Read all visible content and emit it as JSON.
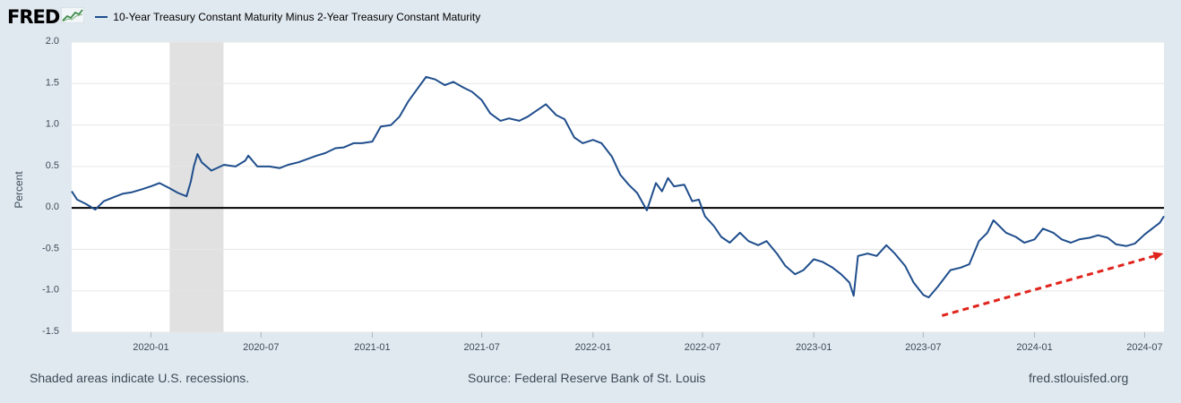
{
  "header": {
    "logo": "FRED",
    "logo_icon": "line-chart-icon",
    "series_title": "10-Year Treasury Constant Maturity Minus 2-Year Treasury Constant Maturity"
  },
  "footer": {
    "left": "Shaded areas indicate U.S. recessions.",
    "center": "Source: Federal Reserve Bank of St. Louis",
    "right": "fred.stlouisfed.org"
  },
  "colors": {
    "series": "#1f4e8c",
    "recession": "#e1e1e1",
    "zero_line": "#000000",
    "arrow": "#e0241c",
    "background": "#e1e9f0",
    "plot": "#ffffff"
  },
  "chart_data": {
    "type": "line",
    "ylabel": "Percent",
    "ylim": [
      -1.5,
      2.0
    ],
    "yticks": [
      -1.5,
      -1.0,
      -0.5,
      0.0,
      0.5,
      1.0,
      1.5,
      2.0
    ],
    "ytick_labels": [
      "-1.5",
      "-1.0",
      "-0.5",
      "0.0",
      "0.5",
      "1.0",
      "1.5",
      "2.0"
    ],
    "xlim": [
      "2019-08-23",
      "2024-08-02"
    ],
    "xticks": [
      "2020-01",
      "2020-07",
      "2021-01",
      "2021-07",
      "2022-01",
      "2022-07",
      "2023-01",
      "2023-07",
      "2024-01",
      "2024-07"
    ],
    "recession": [
      "2020-02-01",
      "2020-04-30"
    ],
    "zero_line": 0.0,
    "series": [
      {
        "points": [
          [
            "2019-08-23",
            0.2
          ],
          [
            "2019-09-01",
            0.1
          ],
          [
            "2019-09-15",
            0.05
          ],
          [
            "2019-10-01",
            -0.02
          ],
          [
            "2019-10-15",
            0.08
          ],
          [
            "2019-11-01",
            0.13
          ],
          [
            "2019-11-15",
            0.17
          ],
          [
            "2019-12-01",
            0.19
          ],
          [
            "2019-12-15",
            0.22
          ],
          [
            "2020-01-01",
            0.26
          ],
          [
            "2020-01-15",
            0.3
          ],
          [
            "2020-01-31",
            0.24
          ],
          [
            "2020-02-15",
            0.18
          ],
          [
            "2020-02-29",
            0.14
          ],
          [
            "2020-03-07",
            0.32
          ],
          [
            "2020-03-12",
            0.5
          ],
          [
            "2020-03-18",
            0.65
          ],
          [
            "2020-03-25",
            0.55
          ],
          [
            "2020-04-10",
            0.45
          ],
          [
            "2020-05-01",
            0.52
          ],
          [
            "2020-05-20",
            0.5
          ],
          [
            "2020-06-05",
            0.57
          ],
          [
            "2020-06-10",
            0.63
          ],
          [
            "2020-06-25",
            0.5
          ],
          [
            "2020-07-15",
            0.5
          ],
          [
            "2020-08-01",
            0.48
          ],
          [
            "2020-08-15",
            0.52
          ],
          [
            "2020-09-01",
            0.55
          ],
          [
            "2020-10-01",
            0.63
          ],
          [
            "2020-10-15",
            0.66
          ],
          [
            "2020-11-01",
            0.72
          ],
          [
            "2020-11-15",
            0.73
          ],
          [
            "2020-12-01",
            0.78
          ],
          [
            "2020-12-15",
            0.78
          ],
          [
            "2021-01-01",
            0.8
          ],
          [
            "2021-01-15",
            0.98
          ],
          [
            "2021-02-01",
            1.0
          ],
          [
            "2021-02-15",
            1.1
          ],
          [
            "2021-03-01",
            1.28
          ],
          [
            "2021-03-15",
            1.42
          ],
          [
            "2021-03-31",
            1.58
          ],
          [
            "2021-04-15",
            1.55
          ],
          [
            "2021-05-01",
            1.48
          ],
          [
            "2021-05-15",
            1.52
          ],
          [
            "2021-06-01",
            1.45
          ],
          [
            "2021-06-15",
            1.4
          ],
          [
            "2021-07-01",
            1.3
          ],
          [
            "2021-07-15",
            1.14
          ],
          [
            "2021-08-01",
            1.05
          ],
          [
            "2021-08-15",
            1.08
          ],
          [
            "2021-09-01",
            1.05
          ],
          [
            "2021-09-15",
            1.1
          ],
          [
            "2021-10-01",
            1.18
          ],
          [
            "2021-10-15",
            1.25
          ],
          [
            "2021-11-01",
            1.12
          ],
          [
            "2021-11-15",
            1.07
          ],
          [
            "2021-12-01",
            0.85
          ],
          [
            "2021-12-15",
            0.78
          ],
          [
            "2022-01-01",
            0.82
          ],
          [
            "2022-01-15",
            0.78
          ],
          [
            "2022-02-01",
            0.62
          ],
          [
            "2022-02-15",
            0.4
          ],
          [
            "2022-03-01",
            0.28
          ],
          [
            "2022-03-15",
            0.18
          ],
          [
            "2022-03-31",
            -0.03
          ],
          [
            "2022-04-15",
            0.3
          ],
          [
            "2022-04-25",
            0.2
          ],
          [
            "2022-05-05",
            0.36
          ],
          [
            "2022-05-15",
            0.26
          ],
          [
            "2022-06-01",
            0.28
          ],
          [
            "2022-06-14",
            0.08
          ],
          [
            "2022-06-25",
            0.1
          ],
          [
            "2022-07-05",
            -0.1
          ],
          [
            "2022-07-20",
            -0.22
          ],
          [
            "2022-08-01",
            -0.35
          ],
          [
            "2022-08-15",
            -0.42
          ],
          [
            "2022-09-01",
            -0.3
          ],
          [
            "2022-09-15",
            -0.4
          ],
          [
            "2022-10-01",
            -0.45
          ],
          [
            "2022-10-15",
            -0.4
          ],
          [
            "2022-11-01",
            -0.55
          ],
          [
            "2022-11-15",
            -0.7
          ],
          [
            "2022-12-01",
            -0.8
          ],
          [
            "2022-12-15",
            -0.75
          ],
          [
            "2023-01-01",
            -0.62
          ],
          [
            "2023-01-15",
            -0.65
          ],
          [
            "2023-02-01",
            -0.72
          ],
          [
            "2023-02-15",
            -0.8
          ],
          [
            "2023-03-01",
            -0.9
          ],
          [
            "2023-03-08",
            -1.06
          ],
          [
            "2023-03-15",
            -0.58
          ],
          [
            "2023-03-31",
            -0.55
          ],
          [
            "2023-04-15",
            -0.58
          ],
          [
            "2023-05-01",
            -0.45
          ],
          [
            "2023-05-15",
            -0.55
          ],
          [
            "2023-06-01",
            -0.7
          ],
          [
            "2023-06-15",
            -0.9
          ],
          [
            "2023-07-01",
            -1.05
          ],
          [
            "2023-07-10",
            -1.08
          ],
          [
            "2023-07-25",
            -0.95
          ],
          [
            "2023-08-15",
            -0.75
          ],
          [
            "2023-09-01",
            -0.72
          ],
          [
            "2023-09-15",
            -0.68
          ],
          [
            "2023-10-01",
            -0.4
          ],
          [
            "2023-10-15",
            -0.3
          ],
          [
            "2023-10-25",
            -0.15
          ],
          [
            "2023-11-15",
            -0.3
          ],
          [
            "2023-12-01",
            -0.35
          ],
          [
            "2023-12-15",
            -0.42
          ],
          [
            "2024-01-01",
            -0.38
          ],
          [
            "2024-01-15",
            -0.25
          ],
          [
            "2024-02-01",
            -0.3
          ],
          [
            "2024-02-15",
            -0.38
          ],
          [
            "2024-03-01",
            -0.42
          ],
          [
            "2024-03-15",
            -0.38
          ],
          [
            "2024-04-01",
            -0.36
          ],
          [
            "2024-04-15",
            -0.33
          ],
          [
            "2024-05-01",
            -0.36
          ],
          [
            "2024-05-15",
            -0.44
          ],
          [
            "2024-06-01",
            -0.46
          ],
          [
            "2024-06-15",
            -0.43
          ],
          [
            "2024-07-01",
            -0.32
          ],
          [
            "2024-07-15",
            -0.24
          ],
          [
            "2024-07-26",
            -0.18
          ],
          [
            "2024-08-02",
            -0.1
          ]
        ]
      }
    ],
    "annotation": {
      "type": "dashed-arrow",
      "color": "#e0241c",
      "from": [
        "2023-08-01",
        -1.3
      ],
      "to": [
        "2024-08-01",
        -0.55
      ]
    }
  }
}
